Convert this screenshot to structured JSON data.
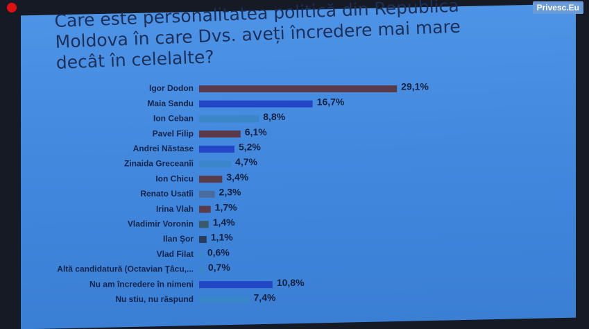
{
  "watermark": "Privesc.Eu",
  "chart_data": {
    "type": "bar",
    "orientation": "horizontal",
    "title": "Care este personalitatea politică din Republica Moldova în care Dvs. aveți încredere mai mare decât în celelalte?",
    "categories": [
      "Igor Dodon",
      "Maia Sandu",
      "Ion Ceban",
      "Pavel Filip",
      "Andrei Năstase",
      "Zinaida Greceanîi",
      "Ion Chicu",
      "Renato Usatîi",
      "Irina Vlah",
      "Vladimir Voronin",
      "Ilan Şor",
      "Vlad Filat",
      "Altă candidatură (Octavian Ţâcu,...",
      "Nu am încredere în nimeni",
      "Nu stiu, nu răspund"
    ],
    "values": [
      29.1,
      16.7,
      8.8,
      6.1,
      5.2,
      4.7,
      3.4,
      2.3,
      1.7,
      1.4,
      1.1,
      0.6,
      0.7,
      10.8,
      7.4
    ],
    "value_labels": [
      "29,1%",
      "16,7%",
      "8,8%",
      "6,1%",
      "5,2%",
      "4,7%",
      "3,4%",
      "2,3%",
      "1,7%",
      "1,4%",
      "1,1%",
      "0,6%",
      "0,7%",
      "10,8%",
      "7,4%"
    ],
    "colors": [
      "#5b3a4a",
      "#2346c6",
      "#3a86c8",
      "#5b3a4a",
      "#2346c6",
      "#3a86c8",
      "#5b3a4a",
      "#4a6c9c",
      "#5b3a4a",
      "#3a5a6c",
      "#2a3a5a",
      "#3a86c8",
      "#3a86c8",
      "#2346c6",
      "#3a86c8"
    ]
  }
}
